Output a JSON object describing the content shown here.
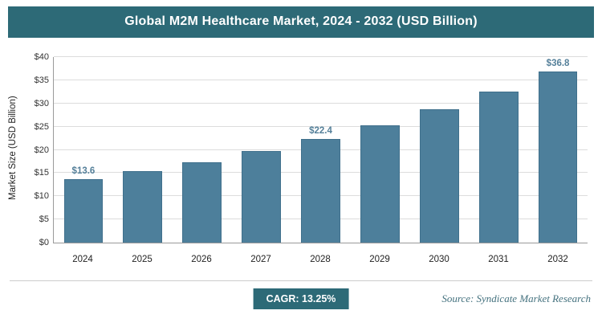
{
  "header": {
    "title": "Global M2M Healthcare Market, 2024 - 2032 (USD Billion)"
  },
  "chart_data": {
    "type": "bar",
    "categories": [
      "2024",
      "2025",
      "2026",
      "2027",
      "2028",
      "2029",
      "2030",
      "2031",
      "2032"
    ],
    "values": [
      13.6,
      15.4,
      17.4,
      19.8,
      22.4,
      25.3,
      28.7,
      32.5,
      36.8
    ],
    "value_labels": [
      "$13.6",
      "",
      "",
      "",
      "$22.4",
      "",
      "",
      "",
      "$36.8"
    ],
    "title": "Global M2M Healthcare Market, 2024 - 2032 (USD Billion)",
    "xlabel": "",
    "ylabel": "Market Size (USD Billion)",
    "ylim": [
      0,
      40
    ],
    "ytick_labels": [
      "$0",
      "$5",
      "$10",
      "$15",
      "$20",
      "$25",
      "$30",
      "$35",
      "$40"
    ],
    "grid": true,
    "legend": "none",
    "bar_color": "#4d7f9b"
  },
  "footer": {
    "cagr_label": "CAGR: 13.25%",
    "source": "Source: Syndicate Market Research"
  },
  "colors": {
    "banner_bg": "#2d6a77",
    "bar_fill": "#4d7f9b",
    "bar_border": "#40708c",
    "value_label": "#55809a",
    "gridline": "#dcdcdc",
    "axis": "#9a9a9a",
    "source_text": "#45727f"
  }
}
